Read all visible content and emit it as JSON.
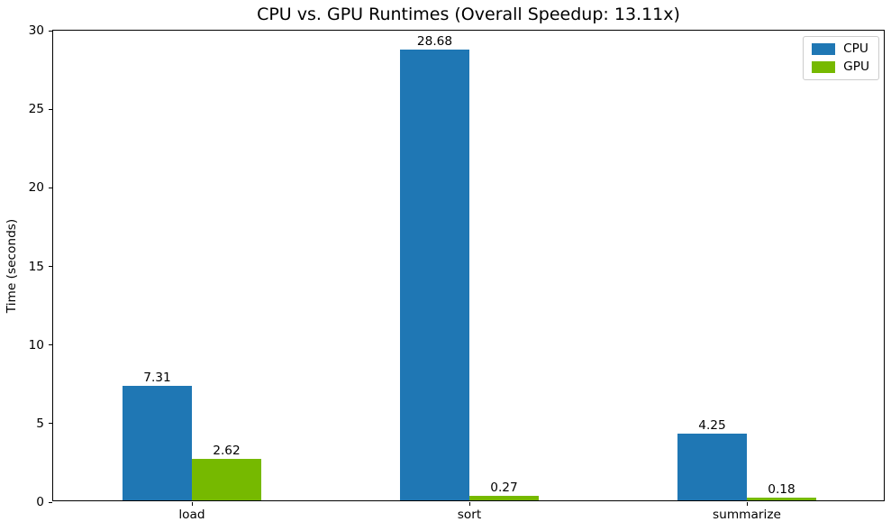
{
  "chart_data": {
    "type": "bar",
    "title": "CPU vs. GPU Runtimes (Overall Speedup: 13.11x)",
    "xlabel": "",
    "ylabel": "Time (seconds)",
    "categories": [
      "load",
      "sort",
      "summarize"
    ],
    "series": [
      {
        "name": "CPU",
        "color": "#1f77b4",
        "values": [
          7.31,
          28.68,
          4.25
        ]
      },
      {
        "name": "GPU",
        "color": "#76b900",
        "values": [
          2.62,
          0.27,
          0.18
        ]
      }
    ],
    "bar_value_labels": [
      [
        "7.31",
        "28.68",
        "4.25"
      ],
      [
        "2.62",
        "0.27",
        "0.18"
      ]
    ],
    "ylim": [
      0,
      30
    ],
    "yticks": [
      0,
      5,
      10,
      15,
      20,
      25,
      30
    ],
    "grid": false,
    "legend_position": "upper right",
    "frame_color": "#000000",
    "background_color": "#ffffff"
  }
}
